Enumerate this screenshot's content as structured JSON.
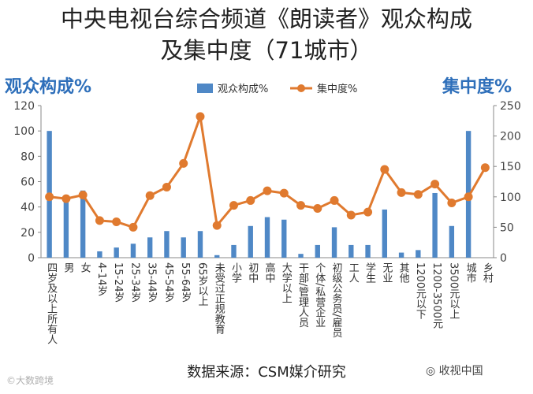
{
  "title_line1": "中央电视台综合频道《朗读者》观众构成",
  "title_line2": "及集中度（71城市）",
  "source": "数据来源：CSM媒介研究",
  "watermark_left": "©大数跨境",
  "watermark_right": "收视中国",
  "colors": {
    "bar": "#4f88c6",
    "line": "#e07a2f",
    "axis_title": "#2e6fba"
  },
  "chart_data": {
    "type": "bar+line",
    "title": "",
    "left_axis_label": "观众构成%",
    "right_axis_label": "集中度%",
    "ylim_left": [
      0,
      120
    ],
    "yticks_left": [
      0,
      20,
      40,
      60,
      80,
      100,
      120
    ],
    "ylim_right": [
      0,
      250
    ],
    "yticks_right": [
      0,
      50,
      100,
      150,
      200,
      250
    ],
    "legend_position": "top",
    "categories": [
      "四岁及以上所有人",
      "男",
      "女",
      "4-14岁",
      "15-24岁",
      "25-34岁",
      "35-44岁",
      "45-54岁",
      "55-64岁",
      "65岁以上",
      "未受过正规教育",
      "小学",
      "初中",
      "高中",
      "大学以上",
      "干部/管理人员",
      "个体/私营企业",
      "初级公务员/雇员",
      "工人",
      "学生",
      "无业",
      "其他",
      "1200元以下",
      "1200-3500元",
      "3500元以上",
      "城市",
      "乡村"
    ],
    "series": [
      {
        "name": "观众构成%",
        "type": "bar",
        "axis": "left",
        "values": [
          100,
          47,
          53,
          5,
          8,
          11,
          16,
          21,
          16,
          21,
          2,
          10,
          25,
          32,
          30,
          3,
          10,
          24,
          10,
          10,
          38,
          4,
          6,
          51,
          25,
          100,
          0
        ]
      },
      {
        "name": "集中度%",
        "type": "line",
        "axis": "right",
        "values": [
          100,
          97,
          103,
          61,
          59,
          50,
          102,
          116,
          155,
          232,
          53,
          86,
          94,
          110,
          106,
          86,
          81,
          94,
          70,
          75,
          145,
          107,
          104,
          121,
          90,
          100,
          148
        ]
      }
    ]
  }
}
